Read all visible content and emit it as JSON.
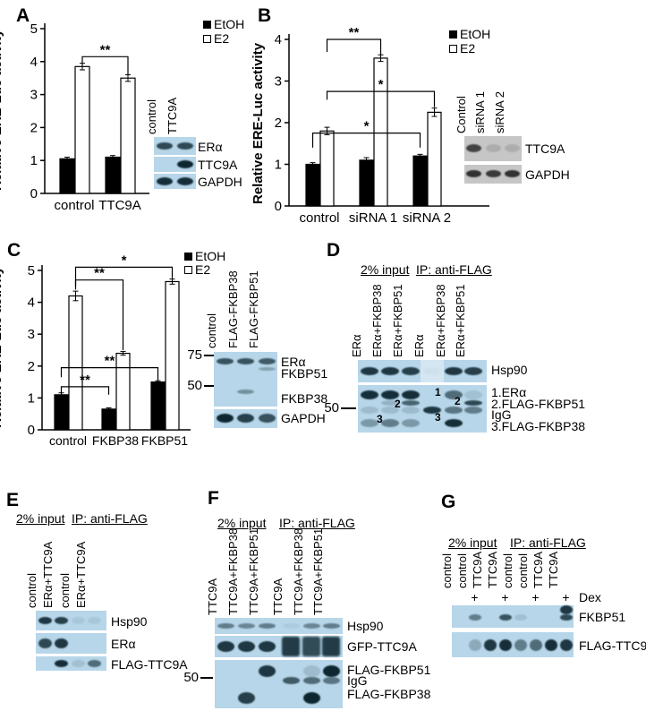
{
  "colors": {
    "blot_blue": "#b7d6e9",
    "blot_gray": "#c6c6c6",
    "band": "#0e2630",
    "band_gray": "#222222",
    "bar_etoh": "#000000",
    "bar_e2": "#ffffff"
  },
  "chart_data": [
    {
      "panel": "A",
      "type": "bar",
      "title": "",
      "categories": [
        "control",
        "TTC9A"
      ],
      "series": [
        {
          "name": "EtOH",
          "values": [
            1.05,
            1.1
          ],
          "errors": [
            0.05,
            0.05
          ]
        },
        {
          "name": "E2",
          "values": [
            3.85,
            3.5
          ],
          "errors": [
            0.1,
            0.1
          ]
        }
      ],
      "xlabel": "",
      "ylabel": "Relative ERE-Luc activity",
      "ylim": [
        0,
        5
      ],
      "yticks": [
        0,
        1,
        2,
        3,
        4,
        5
      ],
      "grid": false,
      "legend_position": "top-right",
      "significance": [
        {
          "label": "**",
          "from": {
            "cat": 0,
            "series": 1
          },
          "to": {
            "cat": 1,
            "series": 1
          },
          "y": 4.15,
          "leg_from": 0.25,
          "leg_to": 0.55
        }
      ]
    },
    {
      "panel": "B",
      "type": "bar",
      "title": "",
      "categories": [
        "control",
        "siRNA 1",
        "siRNA 2"
      ],
      "series": [
        {
          "name": "EtOH",
          "values": [
            1.0,
            1.1,
            1.2
          ],
          "errors": [
            0.04,
            0.06,
            0.04
          ]
        },
        {
          "name": "E2",
          "values": [
            1.8,
            3.55,
            2.25
          ],
          "errors": [
            0.09,
            0.08,
            0.1
          ]
        }
      ],
      "xlabel": "",
      "ylabel": "Relative ERE-Luc activity",
      "ylim": [
        0,
        4
      ],
      "yticks": [
        0,
        1,
        2,
        3,
        4
      ],
      "grid": false,
      "legend_position": "top-right",
      "significance": [
        {
          "label": "**",
          "from": {
            "cat": 0,
            "series": 1
          },
          "to": {
            "cat": 1,
            "series": 1
          },
          "y": 4.0,
          "leg_from": 0.3,
          "leg_to": 0.37
        },
        {
          "label": "*",
          "from": {
            "cat": 0,
            "series": 1
          },
          "to": {
            "cat": 2,
            "series": 1
          },
          "y": 2.75,
          "leg_from": 0.2,
          "leg_to": 0.38
        },
        {
          "label": "*",
          "from": {
            "cat": 0,
            "series": 0
          },
          "to": {
            "cat": 2,
            "series": 0
          },
          "y": 1.75,
          "leg_from": 0.35,
          "leg_to": 0.35
        }
      ]
    },
    {
      "panel": "C",
      "type": "bar",
      "title": "",
      "categories": [
        "control",
        "FKBP38",
        "FKBP51"
      ],
      "series": [
        {
          "name": "EtOH",
          "values": [
            1.1,
            0.65,
            1.5
          ],
          "errors": [
            0.06,
            0.04,
            0.04
          ]
        },
        {
          "name": "E2",
          "values": [
            4.2,
            2.4,
            4.65
          ],
          "errors": [
            0.15,
            0.06,
            0.08
          ]
        }
      ],
      "xlabel": "",
      "ylabel": "Relative ERE-Luc activity",
      "ylim": [
        0,
        5
      ],
      "yticks": [
        0,
        1,
        2,
        3,
        4,
        5
      ],
      "grid": false,
      "legend_position": "top-right",
      "significance": [
        {
          "label": "*",
          "from": {
            "cat": 0,
            "series": 1
          },
          "to": {
            "cat": 2,
            "series": 1
          },
          "y": 5.1,
          "leg_from": 0.6,
          "leg_to": 0.35
        },
        {
          "label": "**",
          "from": {
            "cat": 0,
            "series": 1
          },
          "to": {
            "cat": 1,
            "series": 1
          },
          "y": 4.7,
          "leg_from": 0.3,
          "leg_to": 2.2
        },
        {
          "label": "**",
          "from": {
            "cat": 0,
            "series": 0
          },
          "to": {
            "cat": 2,
            "series": 0
          },
          "y": 1.95,
          "leg_from": 0.3,
          "leg_to": 0.4
        },
        {
          "label": "**",
          "from": {
            "cat": 0,
            "series": 0
          },
          "to": {
            "cat": 1,
            "series": 0
          },
          "y": 1.35,
          "leg_from": 0.25,
          "leg_to": 0.25
        }
      ]
    }
  ],
  "panels": {
    "A": {
      "label": "A",
      "blot": {
        "bg": "blue",
        "lane_labels": [
          "control",
          "TTC9A"
        ],
        "strips": [
          {
            "rows": [
              {
                "label": "ERα",
                "bands": [
                  0.8,
                  0.8
                ]
              }
            ]
          },
          {
            "rows": [
              {
                "label": "TTC9A",
                "bands": [
                  0,
                  1
                ]
              }
            ]
          },
          {
            "rows": [
              {
                "label": "GAPDH",
                "bands": [
                  0.95,
                  0.95
                ]
              }
            ]
          }
        ]
      }
    },
    "B": {
      "label": "B",
      "blot": {
        "bg": "gray",
        "lane_labels": [
          "Control",
          "siRNA 1",
          "siRNA 2"
        ],
        "strips": [
          {
            "rows": [
              {
                "label": "TTC9A",
                "bands": [
                  0.8,
                  0.15,
                  0.15
                ]
              }
            ]
          },
          {
            "rows": [
              {
                "label": "GAPDH",
                "bands": [
                  0.9,
                  0.85,
                  0.9
                ]
              }
            ]
          }
        ]
      }
    },
    "C": {
      "label": "C",
      "blot": {
        "bg": "blue",
        "lane_labels": [
          "control",
          "FLAG-FKBP38",
          "FLAG-FKBP51"
        ],
        "markers": [
          "75",
          "50"
        ],
        "strips": [
          {
            "rows": [
              {
                "label": "ERα",
                "bands": [
                  0.75,
                  0.75,
                  0.7
                ]
              },
              {
                "label": "FKBP51",
                "bands": [
                  0,
                  0,
                  0.3
                ]
              },
              {
                "label": "FKBP38",
                "bands": [
                  0,
                  0.4,
                  0
                ]
              }
            ]
          },
          {
            "rows": [
              {
                "label": "GAPDH",
                "bands": [
                  1,
                  0.85,
                  0.75
                ]
              }
            ]
          }
        ]
      }
    },
    "D": {
      "label": "D",
      "blot": {
        "bg": "blue",
        "headers": [
          "2% input",
          "IP: anti-FLAG"
        ],
        "markers": [
          "50"
        ],
        "lane_labels": [
          "ERα",
          "ERα+FKBP38",
          "ERα+FKBP51",
          "ERα",
          "ERα+FKBP38",
          "ERα+FKBP51"
        ],
        "annotations": [
          "1",
          "2",
          "2",
          "3",
          "3"
        ],
        "strips": [
          {
            "rows": [
              {
                "label": "Hsp90",
                "bands": [
                  0.9,
                  0.9,
                  0.85,
                  0.05,
                  0.9,
                  0.85
                ]
              }
            ]
          },
          {
            "rows": [
              {
                "label": "1.ERα",
                "bands": [
                  0.95,
                  0.95,
                  0.95,
                  0,
                  0.6,
                  0.12
                ]
              },
              {
                "label": "2.FLAG-FKBP51",
                "bands": [
                  0,
                  0.2,
                  0.65,
                  0,
                  0,
                  0.8
                ]
              },
              {
                "label": "IgG",
                "bands": [
                  0.15,
                  0.15,
                  0.15,
                  0.9,
                  0.55,
                  0.5
                ]
              },
              {
                "label": "3.FLAG-FKBP38",
                "bands": [
                  0.35,
                  0.5,
                  0.35,
                  0,
                  0.95,
                  0
                ]
              }
            ]
          }
        ]
      }
    },
    "E": {
      "label": "E",
      "blot": {
        "bg": "blue",
        "headers": [
          "2% input",
          "IP: anti-FLAG"
        ],
        "lane_labels": [
          "control",
          "ERα+TTC9A",
          "control",
          "ERα+TTC9A"
        ],
        "strips": [
          {
            "rows": [
              {
                "label": "Hsp90",
                "bands": [
                  0.9,
                  0.85,
                  0.08,
                  0.08
                ]
              }
            ]
          },
          {
            "rows": [
              {
                "label": "ERα",
                "bands": [
                  0.8,
                  0.9,
                  0,
                  0
                ]
              }
            ]
          },
          {
            "rows": [
              {
                "label": "FLAG-TTC9A",
                "bands": [
                  0,
                  0.95,
                  0.12,
                  0.6
                ]
              }
            ]
          }
        ]
      }
    },
    "F": {
      "label": "F",
      "blot": {
        "bg": "blue",
        "headers": [
          "2% input",
          "IP: anti-FLAG"
        ],
        "markers": [
          "50"
        ],
        "lane_labels": [
          "TTC9A",
          "TTC9A+FKBP38",
          "TTC9A+FKBP51",
          "TTC9A",
          "TTC9A+FKBP38",
          "TTC9A+FKBP51"
        ],
        "strips": [
          {
            "rows": [
              {
                "label": "Hsp90",
                "bands": [
                  0.5,
                  0.45,
                  0.5,
                  0.06,
                  0.45,
                  0.5
                ]
              }
            ]
          },
          {
            "rows": [
              {
                "label": "GFP-TTC9A",
                "bands": [
                  0.9,
                  0.9,
                  0.9,
                  0,
                  0,
                  0
                ]
              },
              {
                "label": "",
                "smear": true,
                "bands": [
                  0,
                  0,
                  0,
                  1,
                  0.9,
                  1
                ]
              }
            ]
          },
          {
            "rows": [
              {
                "label": "FLAG-FKBP51",
                "bands": [
                  0,
                  0,
                  0.9,
                  0,
                  0.15,
                  1
                ]
              },
              {
                "label": "IgG",
                "bands": [
                  0,
                  0,
                  0,
                  0.7,
                  0.6,
                  0.55
                ]
              },
              {
                "label": "FLAG-FKBP38",
                "bands": [
                  0,
                  0.85,
                  0,
                  0,
                  1,
                  0
                ]
              }
            ]
          }
        ]
      }
    },
    "G": {
      "label": "G",
      "blot": {
        "bg": "blue",
        "headers": [
          "2% input",
          "IP: anti-FLAG"
        ],
        "lane_labels": [
          "control",
          "control",
          "TTC9A",
          "TTC9A",
          "control",
          "control",
          "TTC9A",
          "TTC9A"
        ],
        "dex": {
          "label": "Dex",
          "plus": "+",
          "plus_lanes": [
            2,
            4,
            6,
            8
          ]
        },
        "strips": [
          {
            "rows": [
              {
                "label": "FKBP51",
                "bands": [
                  0,
                  0.5,
                  0,
                  0.75,
                  0.12,
                  0,
                  0,
                  0.8
                ]
              },
              {
                "label": "",
                "bands": [
                  0,
                  0,
                  0,
                  0,
                  0,
                  0,
                  0,
                  0.9
                ]
              }
            ]
          },
          {
            "rows": [
              {
                "label": "FLAG-TTC9",
                "bands": [
                  0,
                  0.25,
                  0.9,
                  0.95,
                  0.5,
                  0.6,
                  0.95,
                  0.9
                ]
              }
            ]
          }
        ]
      }
    }
  }
}
